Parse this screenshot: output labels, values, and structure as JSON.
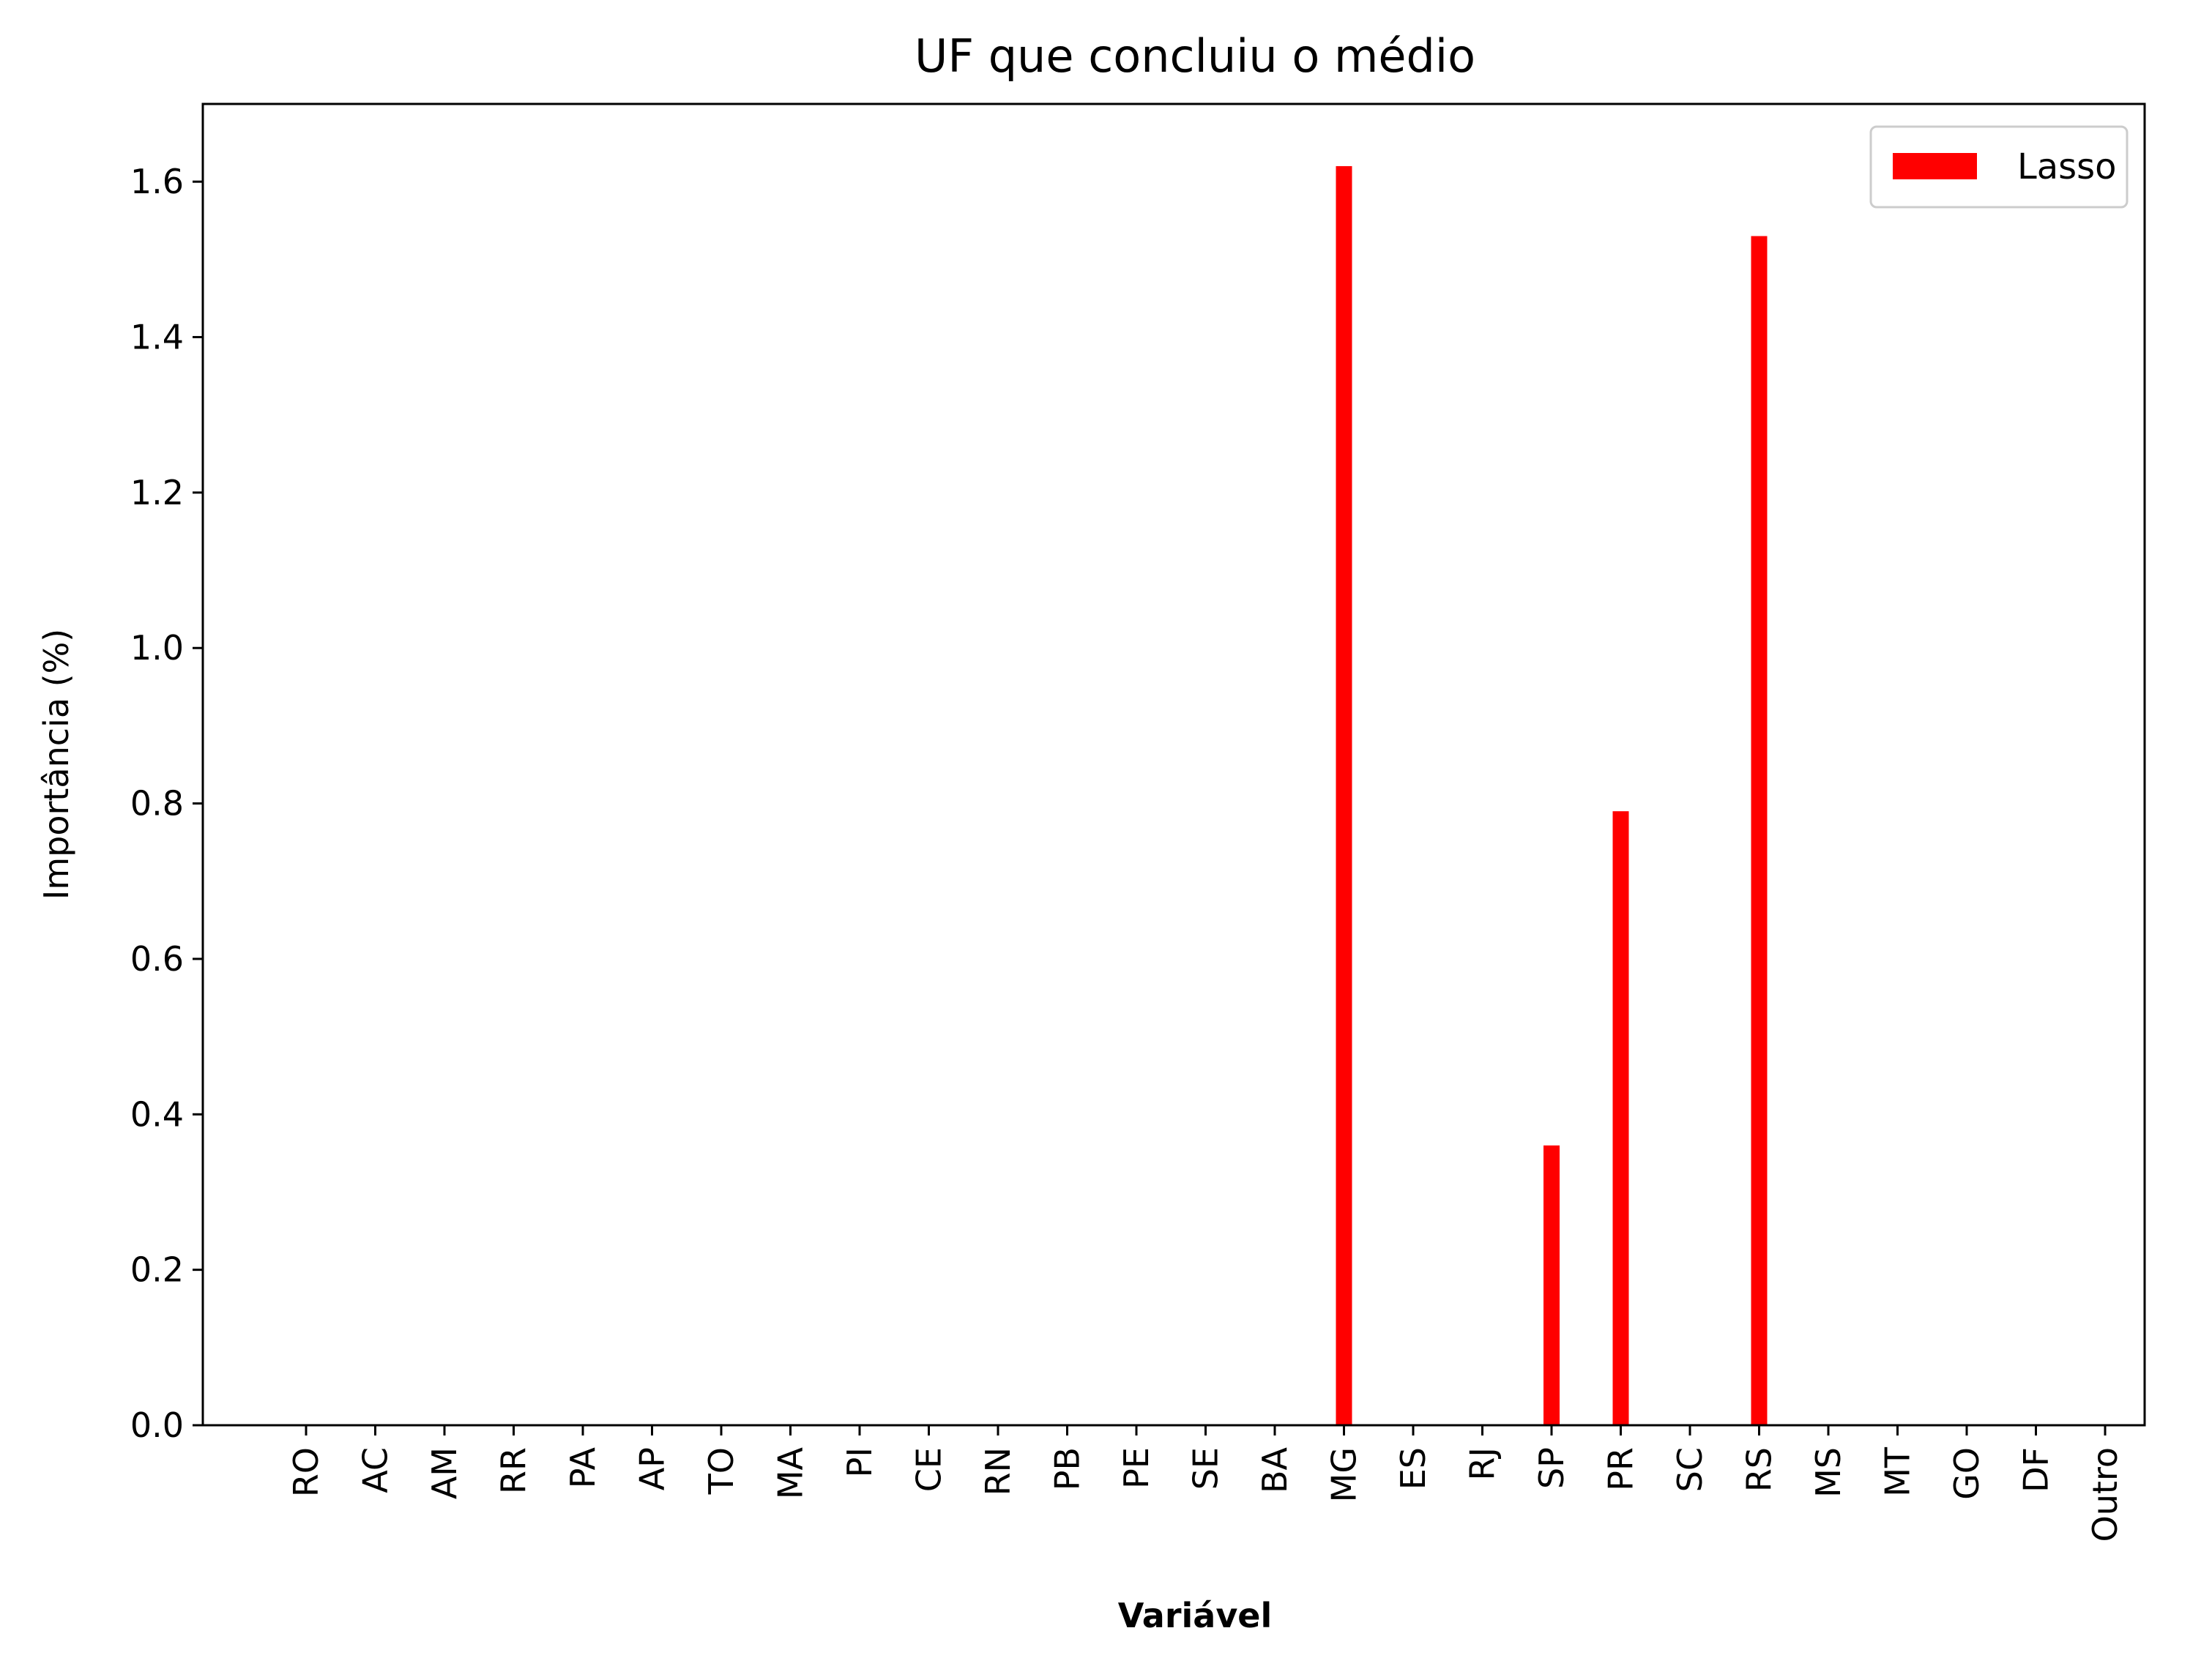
{
  "chart_data": {
    "type": "bar",
    "title": "UF que concluiu o médio",
    "xlabel": "Variável",
    "ylabel": "Importância (%)",
    "ylim": [
      0,
      1.7
    ],
    "yticks": [
      "0.0",
      "0.2",
      "0.4",
      "0.6",
      "0.8",
      "1.0",
      "1.2",
      "1.4",
      "1.6"
    ],
    "ytick_values": [
      0,
      0.2,
      0.4,
      0.6,
      0.8,
      1.0,
      1.2,
      1.4,
      1.6
    ],
    "categories": [
      "RO",
      "AC",
      "AM",
      "RR",
      "PA",
      "AP",
      "TO",
      "MA",
      "PI",
      "CE",
      "RN",
      "PB",
      "PE",
      "SE",
      "BA",
      "MG",
      "ES",
      "RJ",
      "SP",
      "PR",
      "SC",
      "RS",
      "MS",
      "MT",
      "GO",
      "DF",
      "Outro"
    ],
    "series": [
      {
        "name": "Lasso",
        "color": "#ff0000",
        "values": [
          0,
          0,
          0,
          0,
          0,
          0,
          0,
          0,
          0,
          0,
          0,
          0,
          0,
          0,
          0,
          1.62,
          0,
          0,
          0.36,
          0.79,
          0,
          1.53,
          0,
          0,
          0,
          0,
          0
        ]
      }
    ],
    "grid": false,
    "legend_position": "top-right"
  }
}
